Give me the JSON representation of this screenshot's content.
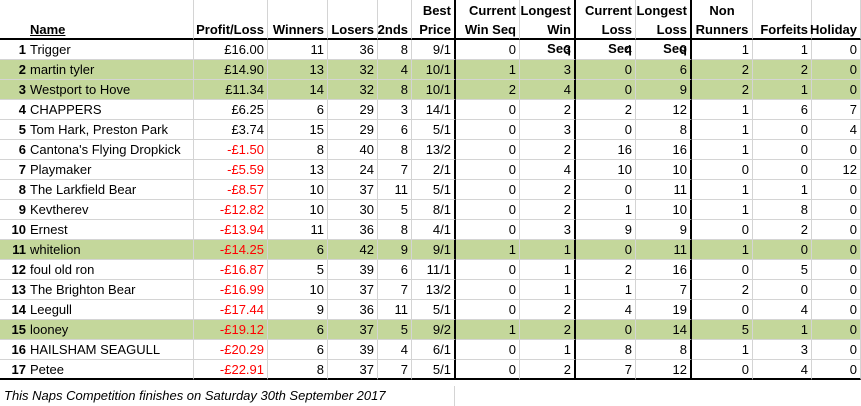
{
  "headers": {
    "name": "Name",
    "profit_loss": "Profit/Loss",
    "winners": "Winners",
    "losers": "Losers",
    "seconds": "2nds",
    "best_price": [
      "Best",
      "Price"
    ],
    "current_win_seq": [
      "Current",
      "Win Seq"
    ],
    "longest_win_seq": [
      "Longest",
      "Win Seq"
    ],
    "current_loss_seq": [
      "Current",
      "Loss Seq"
    ],
    "longest_loss_seq": [
      "Longest",
      "Loss Seq"
    ],
    "non_runners": [
      "Non",
      "Runners"
    ],
    "forfeits": "Forfeits",
    "holiday": "Holiday"
  },
  "rows": [
    {
      "pos": "1",
      "name": "Trigger",
      "pl": "£16.00",
      "neg": false,
      "winners": "11",
      "losers": "36",
      "seconds": "8",
      "best": "9/1",
      "cws": "0",
      "lws": "3",
      "cls": "4",
      "lls": "9",
      "nr": "1",
      "forfeits": "1",
      "holiday": "0",
      "highlight": false
    },
    {
      "pos": "2",
      "name": "martin tyler",
      "pl": "£14.90",
      "neg": false,
      "winners": "13",
      "losers": "32",
      "seconds": "4",
      "best": "10/1",
      "cws": "1",
      "lws": "3",
      "cls": "0",
      "lls": "6",
      "nr": "2",
      "forfeits": "2",
      "holiday": "0",
      "highlight": true
    },
    {
      "pos": "3",
      "name": "Westport to Hove",
      "pl": "£11.34",
      "neg": false,
      "winners": "14",
      "losers": "32",
      "seconds": "8",
      "best": "10/1",
      "cws": "2",
      "lws": "4",
      "cls": "0",
      "lls": "9",
      "nr": "2",
      "forfeits": "1",
      "holiday": "0",
      "highlight": true
    },
    {
      "pos": "4",
      "name": "CHAPPERS",
      "pl": "£6.25",
      "neg": false,
      "winners": "6",
      "losers": "29",
      "seconds": "3",
      "best": "14/1",
      "cws": "0",
      "lws": "2",
      "cls": "2",
      "lls": "12",
      "nr": "1",
      "forfeits": "6",
      "holiday": "7",
      "highlight": false
    },
    {
      "pos": "5",
      "name": "Tom Hark, Preston Park",
      "pl": "£3.74",
      "neg": false,
      "winners": "15",
      "losers": "29",
      "seconds": "6",
      "best": "5/1",
      "cws": "0",
      "lws": "3",
      "cls": "0",
      "lls": "8",
      "nr": "1",
      "forfeits": "0",
      "holiday": "4",
      "highlight": false
    },
    {
      "pos": "6",
      "name": "Cantona's Flying Dropkick",
      "pl": "-£1.50",
      "neg": true,
      "winners": "8",
      "losers": "40",
      "seconds": "8",
      "best": "13/2",
      "cws": "0",
      "lws": "2",
      "cls": "16",
      "lls": "16",
      "nr": "1",
      "forfeits": "0",
      "holiday": "0",
      "highlight": false
    },
    {
      "pos": "7",
      "name": "Playmaker",
      "pl": "-£5.59",
      "neg": true,
      "winners": "13",
      "losers": "24",
      "seconds": "7",
      "best": "2/1",
      "cws": "0",
      "lws": "4",
      "cls": "10",
      "lls": "10",
      "nr": "0",
      "forfeits": "0",
      "holiday": "12",
      "highlight": false
    },
    {
      "pos": "8",
      "name": "The Larkfield Bear",
      "pl": "-£8.57",
      "neg": true,
      "winners": "10",
      "losers": "37",
      "seconds": "11",
      "best": "5/1",
      "cws": "0",
      "lws": "2",
      "cls": "0",
      "lls": "11",
      "nr": "1",
      "forfeits": "1",
      "holiday": "0",
      "highlight": false
    },
    {
      "pos": "9",
      "name": "Kevtherev",
      "pl": "-£12.82",
      "neg": true,
      "winners": "10",
      "losers": "30",
      "seconds": "5",
      "best": "8/1",
      "cws": "0",
      "lws": "2",
      "cls": "1",
      "lls": "10",
      "nr": "1",
      "forfeits": "8",
      "holiday": "0",
      "highlight": false
    },
    {
      "pos": "10",
      "name": "Ernest",
      "pl": "-£13.94",
      "neg": true,
      "winners": "11",
      "losers": "36",
      "seconds": "8",
      "best": "4/1",
      "cws": "0",
      "lws": "3",
      "cls": "9",
      "lls": "9",
      "nr": "0",
      "forfeits": "2",
      "holiday": "0",
      "highlight": false
    },
    {
      "pos": "11",
      "name": "whitelion",
      "pl": "-£14.25",
      "neg": true,
      "winners": "6",
      "losers": "42",
      "seconds": "9",
      "best": "9/1",
      "cws": "1",
      "lws": "1",
      "cls": "0",
      "lls": "11",
      "nr": "1",
      "forfeits": "0",
      "holiday": "0",
      "highlight": true
    },
    {
      "pos": "12",
      "name": "foul old ron",
      "pl": "-£16.87",
      "neg": true,
      "winners": "5",
      "losers": "39",
      "seconds": "6",
      "best": "11/1",
      "cws": "0",
      "lws": "1",
      "cls": "2",
      "lls": "16",
      "nr": "0",
      "forfeits": "5",
      "holiday": "0",
      "highlight": false
    },
    {
      "pos": "13",
      "name": "The Brighton Bear",
      "pl": "-£16.99",
      "neg": true,
      "winners": "10",
      "losers": "37",
      "seconds": "7",
      "best": "13/2",
      "cws": "0",
      "lws": "1",
      "cls": "1",
      "lls": "7",
      "nr": "2",
      "forfeits": "0",
      "holiday": "0",
      "highlight": false
    },
    {
      "pos": "14",
      "name": "Leegull",
      "pl": "-£17.44",
      "neg": true,
      "winners": "9",
      "losers": "36",
      "seconds": "11",
      "best": "5/1",
      "cws": "0",
      "lws": "2",
      "cls": "4",
      "lls": "19",
      "nr": "0",
      "forfeits": "4",
      "holiday": "0",
      "highlight": false
    },
    {
      "pos": "15",
      "name": "looney",
      "pl": "-£19.12",
      "neg": true,
      "winners": "6",
      "losers": "37",
      "seconds": "5",
      "best": "9/2",
      "cws": "1",
      "lws": "2",
      "cls": "0",
      "lls": "14",
      "nr": "5",
      "forfeits": "1",
      "holiday": "0",
      "highlight": true
    },
    {
      "pos": "16",
      "name": "HAILSHAM SEAGULL",
      "pl": "-£20.29",
      "neg": true,
      "winners": "6",
      "losers": "39",
      "seconds": "4",
      "best": "6/1",
      "cws": "0",
      "lws": "1",
      "cls": "8",
      "lls": "8",
      "nr": "1",
      "forfeits": "3",
      "holiday": "0",
      "highlight": false
    },
    {
      "pos": "17",
      "name": "Petee",
      "pl": "-£22.91",
      "neg": true,
      "winners": "8",
      "losers": "37",
      "seconds": "7",
      "best": "5/1",
      "cws": "0",
      "lws": "2",
      "cls": "7",
      "lls": "12",
      "nr": "0",
      "forfeits": "4",
      "holiday": "0",
      "highlight": false
    }
  ],
  "footer": "This Naps Competition finishes on Saturday 30th September 2017"
}
